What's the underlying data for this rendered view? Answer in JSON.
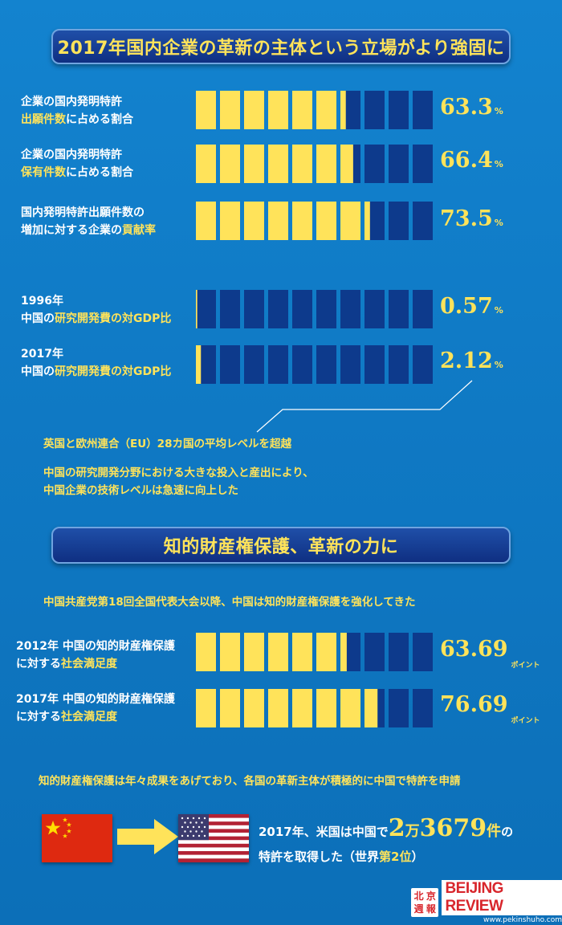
{
  "section1": {
    "title": "2017年国内企業の革新の主体という立場がより強固に",
    "rows": [
      {
        "line1": "企業の国内発明特許",
        "line2_hl": "出願件数",
        "line2_rest": "に占める割合",
        "value": "63.3",
        "unit": "%"
      },
      {
        "line1": "企業の国内発明特許",
        "line2_hl": "保有件数",
        "line2_rest": "に占める割合",
        "value": "66.4",
        "unit": "%"
      },
      {
        "line1": "国内発明特許出願件数の",
        "line2_pre": "増加に対する企業の",
        "line2_hl": "貢献率",
        "value": "73.5",
        "unit": "%"
      }
    ],
    "gdp_rows": [
      {
        "line1": "1996年",
        "line2_pre": "中国の",
        "line2_hl": "研究開発費の対GDP比",
        "value": "0.57",
        "unit": "%"
      },
      {
        "line1": "2017年",
        "line2_pre": "中国の",
        "line2_hl": "研究開発費の対GDP比",
        "value": "2.12",
        "unit": "%"
      }
    ],
    "callout": "英国と欧州連合（EU）28カ国の平均レベルを超越",
    "note_line1": "中国の研究開発分野における大きな投入と産出により、",
    "note_line2": "中国企業の技術レベルは急速に向上した"
  },
  "section2": {
    "title": "知的財産権保護、革新の力に",
    "intro": "中国共産党第18回全国代表大会以降、中国は知的財産権保護を強化してきた",
    "rows": [
      {
        "line1": "2012年 中国の知的財産権保護",
        "line2_pre": "に対する",
        "line2_hl": "社会満足度",
        "value": "63.69",
        "unit": "ポイント"
      },
      {
        "line1": "2017年 中国の知的財産権保護",
        "line2_pre": "に対する",
        "line2_hl": "社会満足度",
        "value": "76.69",
        "unit": "ポイント"
      }
    ],
    "summary": "知的財産権保護は年々成果をあげており、各国の革新主体が積極的に中国で特許を申請",
    "final_pre": "2017年、米国は中国で",
    "final_big1": "2",
    "final_mid1": "万",
    "final_big2": "3679",
    "final_mid2": "件",
    "final_post": "の",
    "final_line2_pre": "特許を取得した（世界",
    "final_line2_hl": "第2位",
    "final_line2_post": "）"
  },
  "logo": {
    "chars": [
      "北",
      "京",
      "週",
      "報"
    ],
    "title": "BEIJING REVIEW",
    "url": "www.pekinshuho.com"
  },
  "colors": {
    "accent": "#ffe35a",
    "bar_empty": "#0d3a8c",
    "bg": "#0f79c4",
    "banner": "#0f2f82",
    "flag_cn": "#de2910",
    "flag_us_blue": "#3c3b6e",
    "flag_us_red": "#b22234"
  },
  "chart_data": [
    {
      "type": "bar",
      "title": "2017年国内企業の革新の主体という立場がより強固に",
      "unit": "%",
      "max": 100,
      "categories": [
        "企業の国内発明特許出願件数に占める割合",
        "企業の国内発明特許保有件数に占める割合",
        "国内発明特許出願件数の増加に対する企業の貢献率"
      ],
      "values": [
        63.3,
        66.4,
        73.5
      ]
    },
    {
      "type": "bar",
      "unit": "%",
      "max": 100,
      "categories": [
        "1996年 中国の研究開発費の対GDP比",
        "2017年 中国の研究開発費の対GDP比"
      ],
      "values": [
        0.57,
        2.12
      ]
    },
    {
      "type": "bar",
      "title": "知的財産権保護、革新の力に",
      "unit": "ポイント",
      "max": 100,
      "categories": [
        "2012年 中国の知的財産権保護に対する社会満足度",
        "2017年 中国の知的財産権保護に対する社会満足度"
      ],
      "values": [
        63.69,
        76.69
      ]
    }
  ]
}
